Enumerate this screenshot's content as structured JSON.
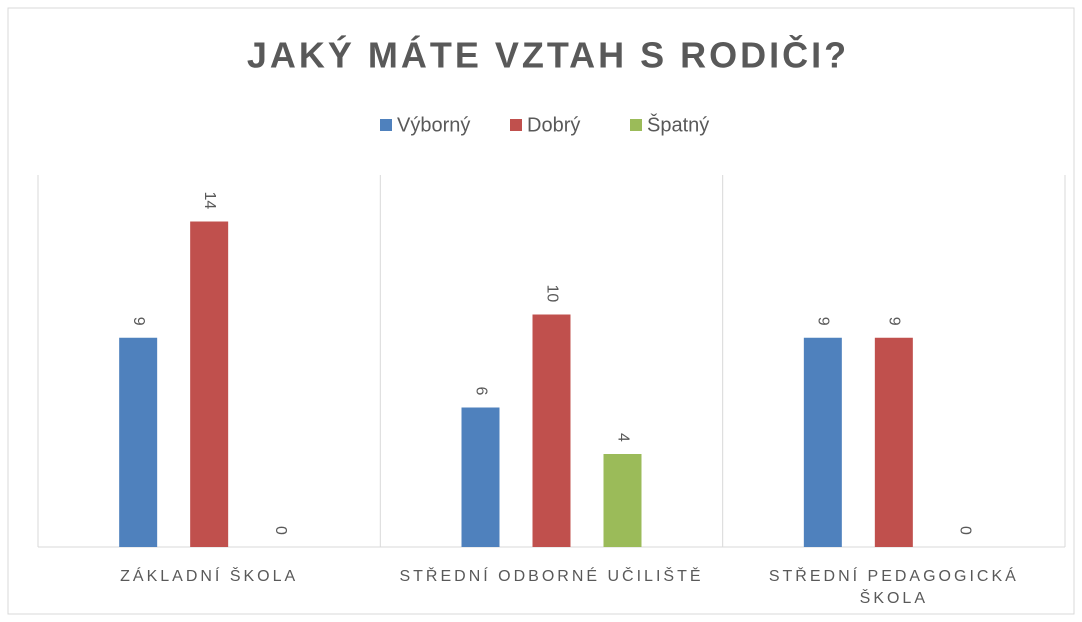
{
  "chart_data": {
    "type": "bar",
    "title": "JAKÝ MÁTE VZTAH S RODIČI?",
    "categories": [
      "ZÁKLADNÍ ŠKOLA",
      "STŘEDNÍ ODBORNÉ UČILIŠTĚ",
      "STŘEDNÍ PEDAGOGICKÁ ŠKOLA"
    ],
    "series": [
      {
        "name": "Výborný",
        "color": "#4f81bd",
        "values": [
          9,
          6,
          9
        ]
      },
      {
        "name": "Dobrý",
        "color": "#c0504d",
        "values": [
          14,
          10,
          9
        ]
      },
      {
        "name": "Špatný",
        "color": "#9bbb59",
        "values": [
          0,
          4,
          0
        ]
      }
    ],
    "ylim": [
      0,
      16
    ],
    "legend": "top"
  }
}
